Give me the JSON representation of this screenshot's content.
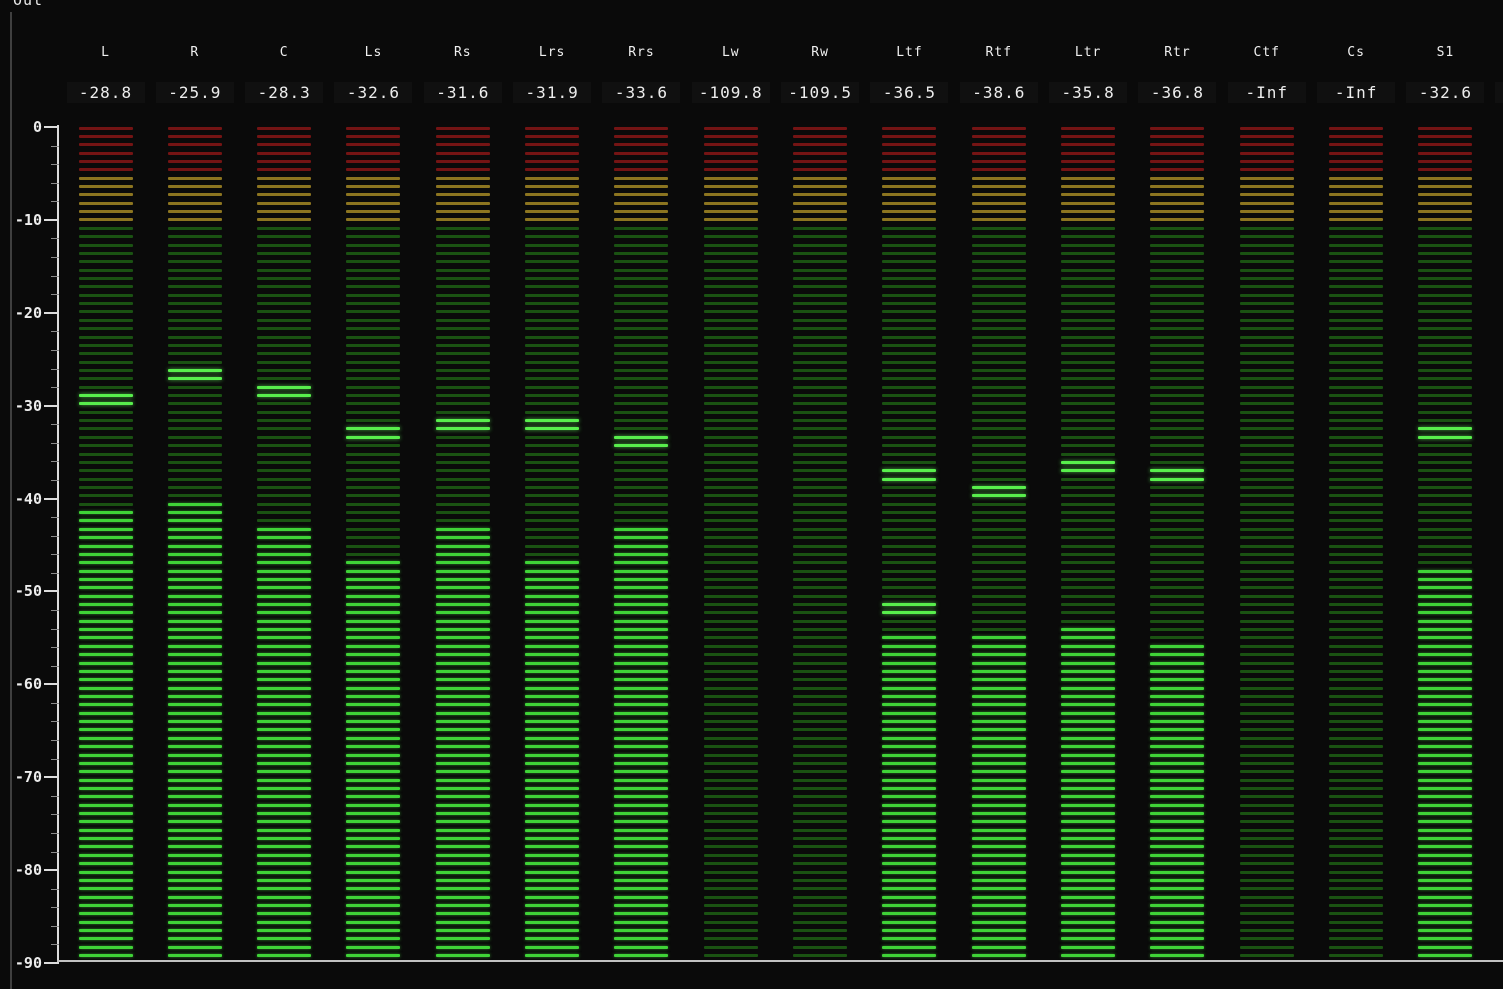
{
  "panel": {
    "label": "Out"
  },
  "meter": {
    "scale": {
      "top_db": 0,
      "bottom_db": -90,
      "major_step": 10,
      "minor_step": 2,
      "tick_labels": [
        "0",
        "-10",
        "-20",
        "-30",
        "-40",
        "-50",
        "-60",
        "-70",
        "-80",
        "-90"
      ]
    },
    "colors": {
      "background": "#0a0a0a",
      "red_dim": "#741414",
      "amber_dim": "#8c7520",
      "green_dim": "#1a5212",
      "green_lit": "#3fd337",
      "green_peak": "#58ee4c",
      "axis": "#dcdcdc",
      "minor_tick": "#8a8a8a",
      "baseline": "#c2c2c2",
      "value_bg": "#101010",
      "value_text": "#ededed"
    },
    "zones": {
      "red_rows": 6,
      "amber_rows": 6
    },
    "channels": [
      {
        "label": "L",
        "value": "-28.8",
        "peak_db": -28.8,
        "level_db": -41.4
      },
      {
        "label": "R",
        "value": "-25.9",
        "peak_db": -25.9,
        "level_db": -40.5
      },
      {
        "label": "C",
        "value": "-28.3",
        "peak_db": -28.3,
        "level_db": -43.2
      },
      {
        "label": "Ls",
        "value": "-32.6",
        "peak_db": -32.6,
        "level_db": -46.8
      },
      {
        "label": "Rs",
        "value": "-31.6",
        "peak_db": -31.6,
        "level_db": -43.2
      },
      {
        "label": "Lrs",
        "value": "-31.9",
        "peak_db": -31.9,
        "level_db": -46.8
      },
      {
        "label": "Rrs",
        "value": "-33.6",
        "peak_db": -33.6,
        "level_db": -43.2
      },
      {
        "label": "Lw",
        "value": "-109.8",
        "peak_db": -109.8,
        "level_db": null
      },
      {
        "label": "Rw",
        "value": "-109.5",
        "peak_db": -109.5,
        "level_db": null
      },
      {
        "label": "Ltf",
        "value": "-36.5",
        "peak_db": -36.5,
        "level_db": -54.9,
        "second_peak_db": -51.3
      },
      {
        "label": "Rtf",
        "value": "-38.6",
        "peak_db": -38.6,
        "level_db": -54.9
      },
      {
        "label": "Ltr",
        "value": "-35.8",
        "peak_db": -35.8,
        "level_db": -54.0
      },
      {
        "label": "Rtr",
        "value": "-36.8",
        "peak_db": -36.8,
        "level_db": -55.8
      },
      {
        "label": "Ctf",
        "value": "-Inf",
        "peak_db": null,
        "level_db": null
      },
      {
        "label": "Cs",
        "value": "-Inf",
        "peak_db": null,
        "level_db": null
      },
      {
        "label": "S1",
        "value": "-32.6",
        "peak_db": -32.6,
        "level_db": -47.7
      }
    ],
    "partial_channel_at_right": true
  }
}
